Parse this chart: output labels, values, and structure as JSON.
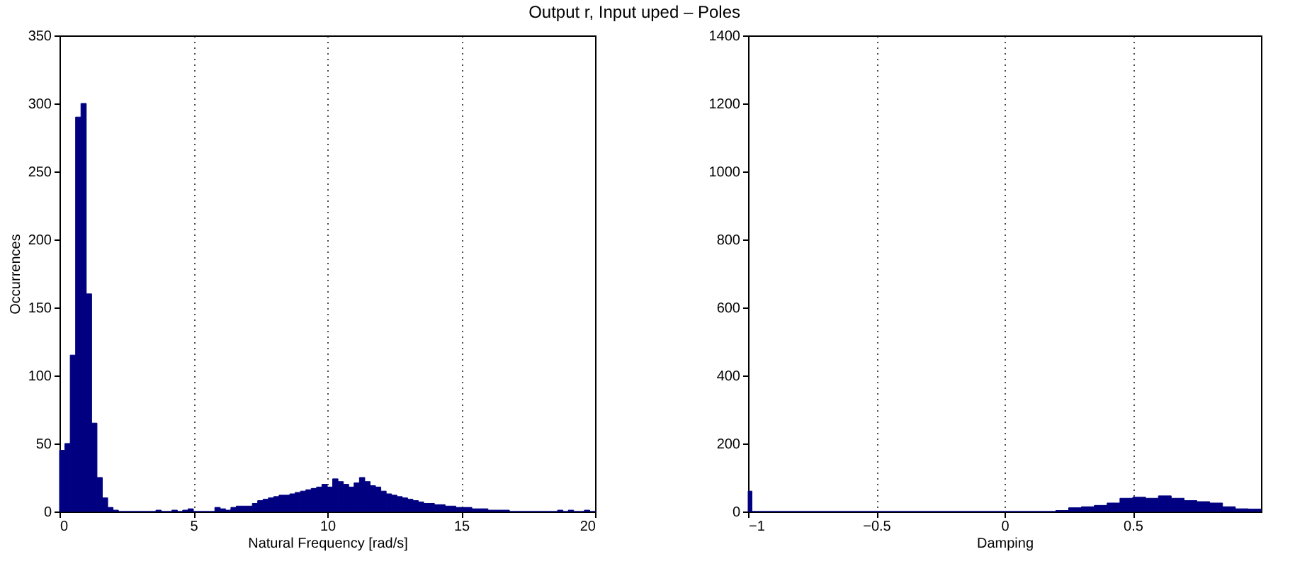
{
  "chart_data": [
    {
      "type": "histogram",
      "title": "Output r, Input uped – Poles",
      "xlabel": "Natural Frequency [rad/s]",
      "ylabel": "Occurrences",
      "color": "#000080",
      "bins": [
        0,
        0.2,
        0.4,
        0.6,
        0.8,
        1,
        1.2,
        1.4,
        1.6,
        1.8,
        2,
        2.2,
        2.4,
        2.6,
        2.8,
        3,
        3.2,
        3.4,
        3.6,
        3.8,
        4,
        4.2,
        4.4,
        4.6,
        4.8,
        5,
        5.2,
        5.4,
        5.6,
        5.8,
        6,
        6.2,
        6.4,
        6.6,
        6.8,
        7,
        7.2,
        7.4,
        7.6,
        7.8,
        8,
        8.2,
        8.4,
        8.6,
        8.8,
        9,
        9.2,
        9.4,
        9.6,
        9.8,
        10,
        10.2,
        10.4,
        10.6,
        10.8,
        11,
        11.2,
        11.4,
        11.6,
        11.8,
        12,
        12.2,
        12.4,
        12.6,
        12.8,
        13,
        13.2,
        13.4,
        13.6,
        13.8,
        14,
        14.2,
        14.4,
        14.6,
        14.8,
        15,
        15.2,
        15.4,
        15.6,
        15.8,
        16,
        16.2,
        16.4,
        16.6,
        16.8,
        17,
        17.2,
        17.4,
        17.6,
        17.8,
        18,
        18.2,
        18.4,
        18.6,
        18.8,
        19,
        19.2,
        19.4,
        19.6,
        19.8,
        20
      ],
      "values": [
        45,
        50,
        115,
        290,
        300,
        160,
        65,
        25,
        10,
        3,
        1,
        0,
        0,
        0,
        0,
        0,
        0,
        0,
        1,
        0,
        0,
        1,
        0,
        1,
        2,
        0,
        0,
        0,
        0,
        3,
        2,
        1,
        3,
        4,
        4,
        4,
        6,
        8,
        9,
        10,
        11,
        12,
        12,
        13,
        14,
        15,
        16,
        17,
        18,
        20,
        18,
        24,
        22,
        20,
        18,
        21,
        25,
        22,
        19,
        18,
        15,
        13,
        12,
        11,
        10,
        9,
        8,
        7,
        6,
        6,
        5,
        5,
        4,
        4,
        3,
        3,
        3,
        2,
        2,
        2,
        1,
        1,
        1,
        1,
        0,
        0,
        0,
        0,
        0,
        0,
        0,
        0,
        0,
        1,
        0,
        1,
        0,
        0,
        1,
        0
      ],
      "xlim": [
        0,
        20
      ],
      "xticks": [
        0,
        5,
        10,
        15,
        20
      ],
      "ylim": [
        0,
        350
      ],
      "yticks": [
        0,
        50,
        100,
        150,
        200,
        250,
        300,
        350
      ],
      "grid": "x"
    },
    {
      "type": "histogram",
      "xlabel": "Damping",
      "color": "#000080",
      "bins": [
        -1,
        -0.985,
        0.2,
        0.25,
        0.3,
        0.35,
        0.4,
        0.45,
        0.5,
        0.55,
        0.6,
        0.65,
        0.7,
        0.75,
        0.8,
        0.85,
        0.9,
        0.95,
        1
      ],
      "values": [
        60,
        0,
        3,
        11,
        14,
        18,
        25,
        39,
        42,
        39,
        46,
        39,
        32,
        29,
        25,
        14,
        8,
        7
      ],
      "xlim": [
        -1,
        1
      ],
      "xticks": [
        -1,
        -0.5,
        0,
        0.5
      ],
      "ylim": [
        0,
        1400
      ],
      "yticks": [
        0,
        200,
        400,
        600,
        800,
        1000,
        1200,
        1400
      ],
      "grid": "x"
    }
  ]
}
